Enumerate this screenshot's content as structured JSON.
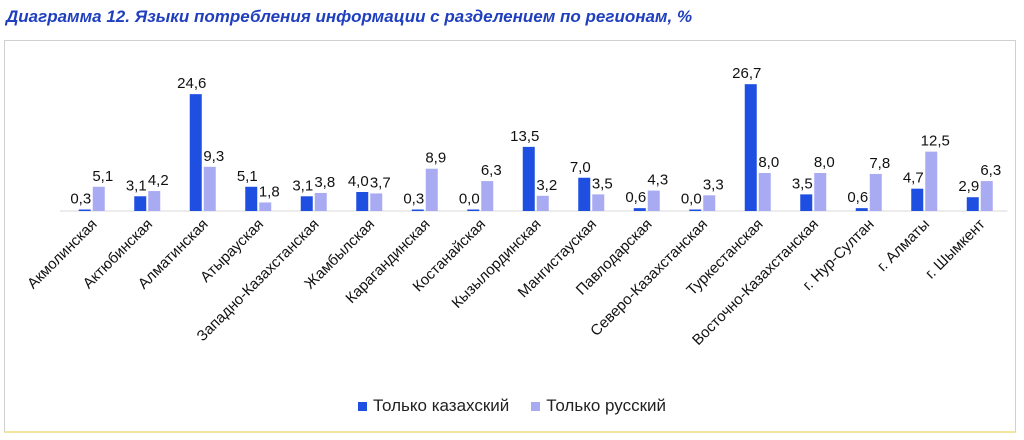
{
  "title": "Диаграмма 12. Языки потребления информации с разделением по регионам, %",
  "chart_data": {
    "type": "bar",
    "title": "Диаграмма 12. Языки потребления информации с разделением по регионам, %",
    "categories": [
      "Акмолинская",
      "Актюбинская",
      "Алматинская",
      "Атырауская",
      "Западно-Казахстанская",
      "Жамбылская",
      "Карагандинская",
      "Костанайская",
      "Кызылординская",
      "Мангистауская",
      "Павлодарская",
      "Северо-Казахстанская",
      "Туркестанская",
      "Восточно-Казахстанская",
      "г. Нур-Султан",
      "г. Алматы",
      "г. Шымкент"
    ],
    "value_labels": {
      "Только казахский": [
        "0,3",
        "3,1",
        "24,6",
        "5,1",
        "3,1",
        "4,0",
        "0,3",
        "0,0",
        "13,5",
        "7,0",
        "0,6",
        "0,0",
        "26,7",
        "3,5",
        "0,6",
        "4,7",
        "2,9"
      ],
      "Только русский": [
        "5,1",
        "4,2",
        "9,3",
        "1,8",
        "3,8",
        "3,7",
        "8,9",
        "6,3",
        "3,2",
        "3,5",
        "4,3",
        "3,3",
        "8,0",
        "8,0",
        "7,8",
        "12,5",
        "6,3"
      ]
    },
    "series": [
      {
        "name": "Только казахский",
        "color": "#1f4fe0",
        "values": [
          0.3,
          3.1,
          24.6,
          5.1,
          3.1,
          4.0,
          0.3,
          0.0,
          13.5,
          7.0,
          0.6,
          0.0,
          26.7,
          3.5,
          0.6,
          4.7,
          2.9
        ]
      },
      {
        "name": "Только русский",
        "color": "#a9abf2",
        "values": [
          5.1,
          4.2,
          9.3,
          1.8,
          3.8,
          3.7,
          8.9,
          6.3,
          3.2,
          3.5,
          4.3,
          3.3,
          8.0,
          8.0,
          7.8,
          12.5,
          6.3
        ]
      }
    ],
    "ylim": [
      0,
      30
    ],
    "legend": "bottom"
  }
}
